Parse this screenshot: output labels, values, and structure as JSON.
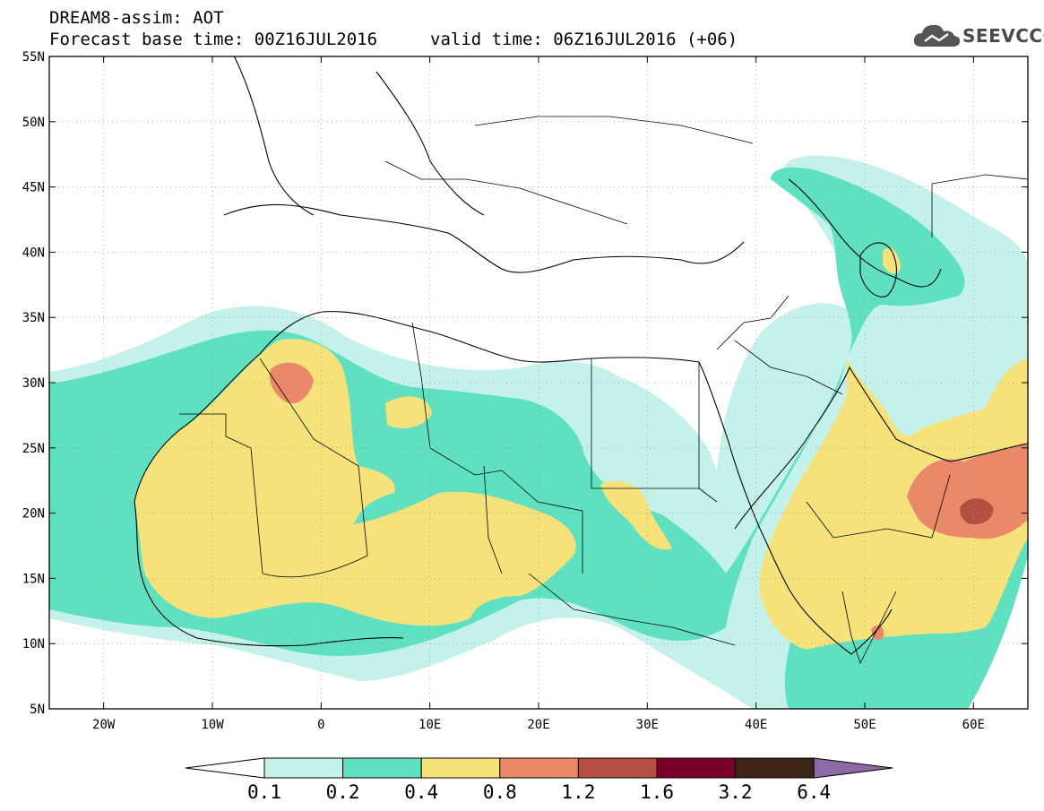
{
  "header": {
    "line1": "DREAM8-assim: AOT",
    "base_time": "Forecast base time: 00Z16JUL2016",
    "valid_time": "valid time: 06Z16JUL2016 (+06)"
  },
  "logo": {
    "text": "SEEVCCC",
    "icon": "cloud-icon"
  },
  "map": {
    "lon_range": [
      -25,
      65
    ],
    "lat_range": [
      5,
      55
    ],
    "lon_ticks": [
      {
        "lon": -20,
        "label": "20W"
      },
      {
        "lon": -10,
        "label": "10W"
      },
      {
        "lon": 0,
        "label": "0"
      },
      {
        "lon": 10,
        "label": "10E"
      },
      {
        "lon": 20,
        "label": "20E"
      },
      {
        "lon": 30,
        "label": "30E"
      },
      {
        "lon": 40,
        "label": "40E"
      },
      {
        "lon": 50,
        "label": "50E"
      },
      {
        "lon": 60,
        "label": "60E"
      }
    ],
    "lat_ticks": [
      {
        "lat": 5,
        "label": "5N"
      },
      {
        "lat": 10,
        "label": "10N"
      },
      {
        "lat": 15,
        "label": "15N"
      },
      {
        "lat": 20,
        "label": "20N"
      },
      {
        "lat": 25,
        "label": "25N"
      },
      {
        "lat": 30,
        "label": "30N"
      },
      {
        "lat": 35,
        "label": "35N"
      },
      {
        "lat": 40,
        "label": "40N"
      },
      {
        "lat": 45,
        "label": "45N"
      },
      {
        "lat": 50,
        "label": "50N"
      },
      {
        "lat": 55,
        "label": "55N"
      }
    ],
    "grid": true
  },
  "colorbar": {
    "labels": [
      "0.1",
      "0.2",
      "0.4",
      "0.8",
      "1.2",
      "1.6",
      "3.2",
      "6.4"
    ],
    "colors": [
      "#ffffff",
      "#c4f2ea",
      "#5fe0c0",
      "#f5e27a",
      "#e9896a",
      "#b24f40",
      "#7a0028",
      "#3d2414",
      "#8e69a8"
    ]
  }
}
